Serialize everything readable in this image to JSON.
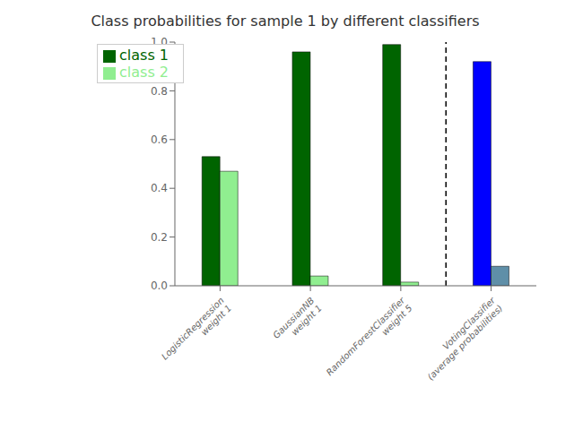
{
  "chart_data": {
    "type": "bar",
    "title": "Class probabilities for sample 1 by different classifiers",
    "categories": [
      "LogisticRegression\nweight 1",
      "GaussianNB\nweight 1",
      "RandomForestClassifier\nweight 5",
      "VotingClassifier\n(average probabilities)"
    ],
    "series": [
      {
        "name": "class 1",
        "color": "#006400",
        "colors": [
          "#006400",
          "#006400",
          "#006400",
          "#0000FF"
        ],
        "values": [
          0.53,
          0.96,
          0.99,
          0.92
        ]
      },
      {
        "name": "class 2",
        "color": "#90EE90",
        "colors": [
          "#90EE90",
          "#90EE90",
          "#90EE90",
          "#5f8fa8"
        ],
        "values": [
          0.47,
          0.04,
          0.015,
          0.08
        ]
      }
    ],
    "ylim": [
      0,
      1.0
    ],
    "yticks": [
      {
        "value": 0.0,
        "label": "0.0"
      },
      0.2,
      0.4,
      0.6,
      0.8,
      {
        "value": 1.0,
        "label": "1.0"
      }
    ],
    "grid": false,
    "legend": "upper left"
  }
}
